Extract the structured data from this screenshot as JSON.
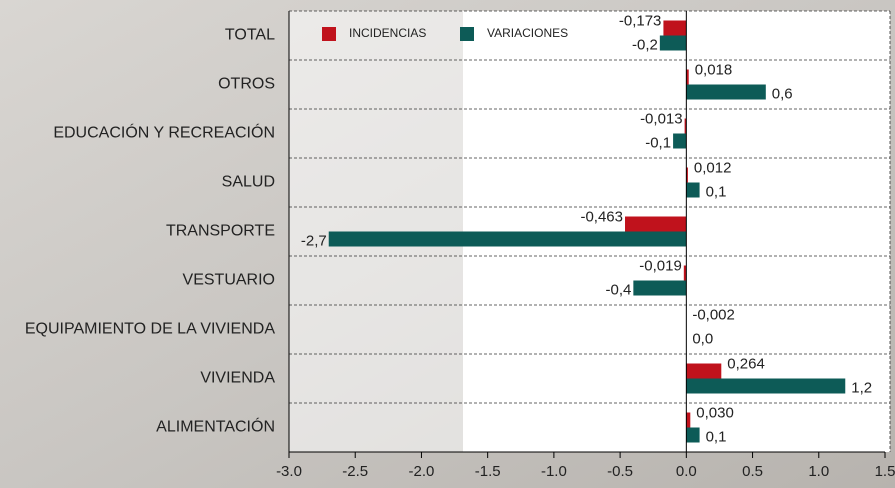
{
  "chart_data": {
    "type": "bar",
    "orientation": "horizontal",
    "categories": [
      "TOTAL",
      "OTROS",
      "EDUCACIÓN Y RECREACIÓN",
      "SALUD",
      "TRANSPORTE",
      "VESTUARIO",
      "EQUIPAMIENTO DE LA VIVIENDA",
      "VIVIENDA",
      "ALIMENTACIÓN"
    ],
    "series": [
      {
        "name": "INCIDENCIAS",
        "color": "#c0121c",
        "values": [
          -0.173,
          0.018,
          -0.013,
          0.012,
          -0.463,
          -0.019,
          -0.002,
          0.264,
          0.03
        ],
        "value_labels": [
          "-0,173",
          "0,018",
          "-0,013",
          "0,012",
          "-0,463",
          "-0,019",
          "-0,002",
          "0,264",
          "0,030"
        ]
      },
      {
        "name": "VARIACIONES",
        "color": "#0d5b57",
        "values": [
          -0.2,
          0.6,
          -0.1,
          0.1,
          -2.7,
          -0.4,
          0.0,
          1.2,
          0.1
        ],
        "value_labels": [
          "-0,2",
          "0,6",
          "-0,1",
          "0,1",
          "-2,7",
          "-0,4",
          "0,0",
          "1,2",
          "0,1"
        ]
      }
    ],
    "xlim": [
      -3.0,
      1.5
    ],
    "xticks": [
      {
        "value": -3,
        "label": "-3.0"
      },
      -2.5,
      {
        "value": -2,
        "label": "-2.0"
      },
      -1.5,
      {
        "value": -1,
        "label": "-1.0"
      },
      -0.5,
      {
        "value": 0,
        "label": "0.0"
      },
      0.5,
      {
        "value": 1,
        "label": "1.0"
      },
      1.5
    ],
    "grid": true,
    "legend": "top-left"
  }
}
